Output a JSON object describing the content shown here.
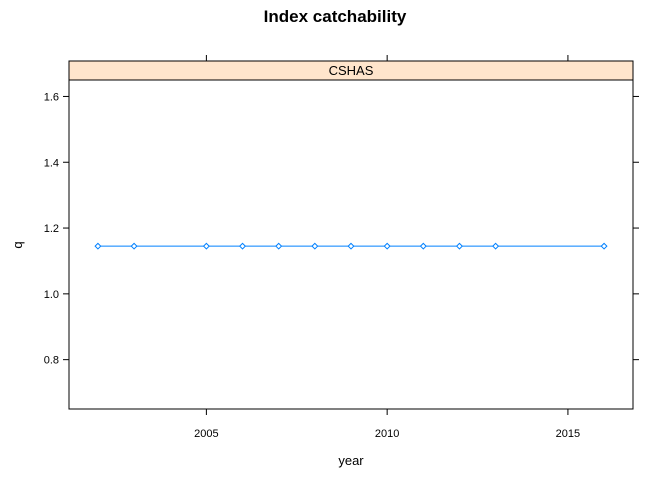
{
  "chart_data": {
    "type": "line",
    "title": "Index catchability",
    "panel": "CSHAS",
    "xlabel": "year",
    "ylabel": "q",
    "xlim": [
      2001.2,
      2016.8
    ],
    "ylim": [
      0.65,
      1.65
    ],
    "x_ticks": [
      2005,
      2010,
      2015
    ],
    "y_ticks": [
      0.8,
      1.0,
      1.2,
      1.4,
      1.6
    ],
    "x_tick_labels": [
      "2005",
      "2010",
      "2015"
    ],
    "y_tick_labels": [
      "0.8",
      "1.0",
      "1.2",
      "1.4",
      "1.6"
    ],
    "grid": false,
    "series": [
      {
        "x": [
          2002,
          2003,
          2005,
          2006,
          2007,
          2008,
          2009,
          2010,
          2011,
          2012,
          2013,
          2016
        ],
        "values": [
          1.145,
          1.145,
          1.145,
          1.145,
          1.145,
          1.145,
          1.145,
          1.145,
          1.145,
          1.145,
          1.145,
          1.145
        ],
        "color": "#0080ff",
        "marker": "diamond"
      }
    ],
    "colors": {
      "strip_fill": "#ffe5cc",
      "line": "#0080ff",
      "marker": "#0080ff"
    }
  }
}
